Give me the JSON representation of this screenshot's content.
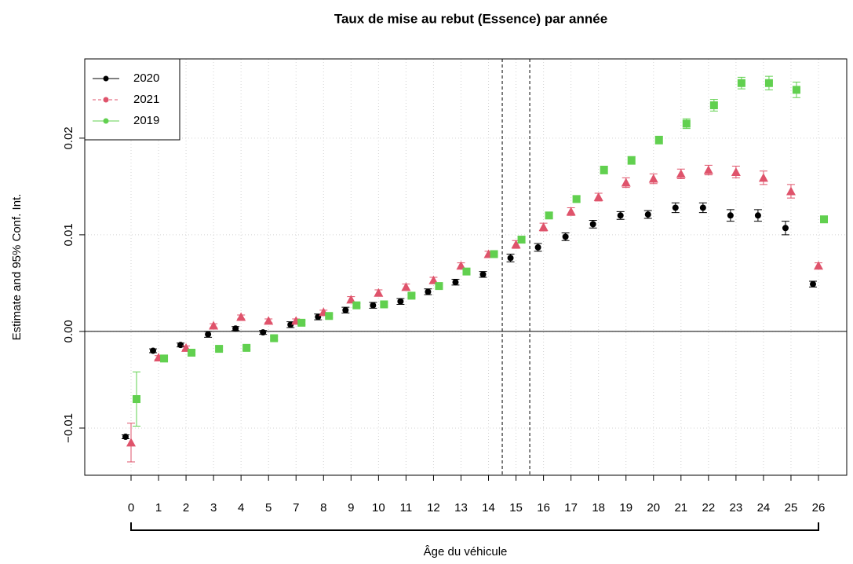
{
  "chart_data": {
    "type": "errorbar",
    "title": "Taux de mise au rebut (Essence) par année",
    "xlabel": "Âge du véhicule",
    "ylabel": "Estimate and 95% Conf. Int.",
    "categories": [
      "0",
      "1",
      "2",
      "3",
      "4",
      "5",
      "7",
      "8",
      "9",
      "10",
      "11",
      "12",
      "13",
      "14",
      "15",
      "16",
      "17",
      "18",
      "19",
      "20",
      "21",
      "22",
      "23",
      "24",
      "25",
      "26"
    ],
    "series": [
      {
        "name": "2020",
        "color": "#000000",
        "marker": "circle",
        "linestyle": "solid",
        "values": [
          -0.0109,
          -0.002,
          -0.0014,
          -0.0003,
          0.0003,
          -0.0001,
          0.0007,
          0.0015,
          0.0022,
          0.0027,
          0.0031,
          0.0041,
          0.0051,
          0.0059,
          0.0076,
          0.0087,
          0.0098,
          0.0111,
          0.012,
          0.0121,
          0.0128,
          0.0128,
          0.012,
          0.012,
          0.0107,
          0.0049
        ],
        "errors": [
          0.0002,
          0.0002,
          0.0002,
          0.0003,
          0.0002,
          0.0002,
          0.0003,
          0.0003,
          0.0003,
          0.0003,
          0.0003,
          0.0003,
          0.0003,
          0.0003,
          0.0004,
          0.0004,
          0.0004,
          0.0004,
          0.0004,
          0.0004,
          0.0005,
          0.0005,
          0.0006,
          0.0006,
          0.0007,
          0.0003
        ]
      },
      {
        "name": "2021",
        "color": "#DF536B",
        "marker": "triangle",
        "linestyle": "dashed",
        "values": [
          -0.0115,
          -0.0027,
          -0.0017,
          0.0006,
          0.0015,
          0.0011,
          0.0011,
          0.002,
          0.0033,
          0.004,
          0.0046,
          0.0053,
          0.0068,
          0.008,
          0.009,
          0.0108,
          0.0124,
          0.0139,
          0.0154,
          0.0158,
          0.0163,
          0.0167,
          0.0165,
          0.0159,
          0.0145,
          0.0068
        ],
        "errors": [
          0.002,
          0.0002,
          0.0002,
          0.0002,
          0.0002,
          0.0002,
          0.0002,
          0.0002,
          0.0003,
          0.0003,
          0.0003,
          0.0003,
          0.0003,
          0.0003,
          0.0004,
          0.0004,
          0.0004,
          0.0004,
          0.0005,
          0.0005,
          0.0005,
          0.0005,
          0.0006,
          0.0007,
          0.0007,
          0.0003
        ]
      },
      {
        "name": "2019",
        "color": "#61D04F",
        "marker": "square",
        "linestyle": "solid",
        "values": [
          -0.007,
          -0.0028,
          -0.0022,
          -0.0018,
          -0.0017,
          -0.0007,
          0.0009,
          0.0016,
          0.0027,
          0.0028,
          0.0037,
          0.0047,
          0.0062,
          0.008,
          0.0095,
          0.012,
          0.0137,
          0.0167,
          0.0177,
          0.0198,
          0.0215,
          0.0234,
          0.0257,
          0.0257,
          0.025,
          0.0116
        ],
        "errors": [
          0.0028,
          0.0002,
          0.0002,
          0.0002,
          0.0002,
          0.0002,
          0.0002,
          0.0002,
          0.0002,
          0.0002,
          0.0002,
          0.0002,
          0.0002,
          0.0002,
          0.0003,
          0.0003,
          0.0003,
          0.0004,
          0.0004,
          0.0004,
          0.0005,
          0.0006,
          0.0006,
          0.0007,
          0.0008,
          0.0003
        ]
      }
    ],
    "vlines": [
      13.5,
      14.5
    ],
    "hline": 0,
    "ylim": [
      -0.01488,
      0.0282
    ],
    "yticks": [
      {
        "value": -0.01,
        "label": "−0.01"
      },
      {
        "value": 0,
        "label": "0.00"
      },
      {
        "value": 0.01,
        "label": "0.01"
      },
      {
        "value": 0.02,
        "label": "0.02"
      }
    ],
    "grid": true,
    "legend": "top-left"
  }
}
